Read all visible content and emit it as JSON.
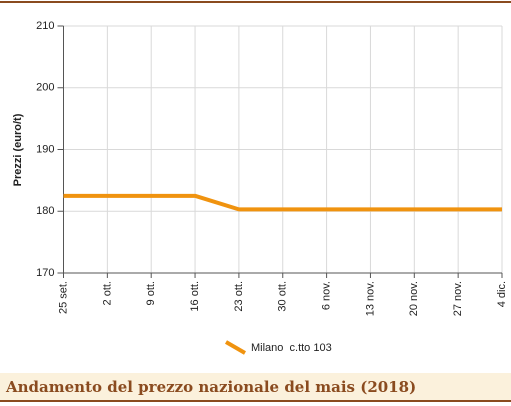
{
  "chart_data": {
    "type": "line",
    "title": "Andamento del prezzo nazionale del mais (2018)",
    "ylabel": "Prezzi (euro/t)",
    "categories": [
      "25 set.",
      "2 ott.",
      "9 ott.",
      "16 ott.",
      "23 ott.",
      "30 ott.",
      "6 nov.",
      "13 nov.",
      "20 nov.",
      "27 nov.",
      "4 dic."
    ],
    "series": [
      {
        "name": "Milano  c.tto 103",
        "color": "#f0930f",
        "values": [
          182.5,
          182.5,
          182.5,
          182.5,
          180.3,
          180.3,
          180.3,
          180.3,
          180.3,
          180.3,
          180.3
        ]
      }
    ],
    "ylim": [
      170,
      210
    ],
    "yticks": [
      170,
      180,
      190,
      200,
      210
    ],
    "grid": true
  }
}
